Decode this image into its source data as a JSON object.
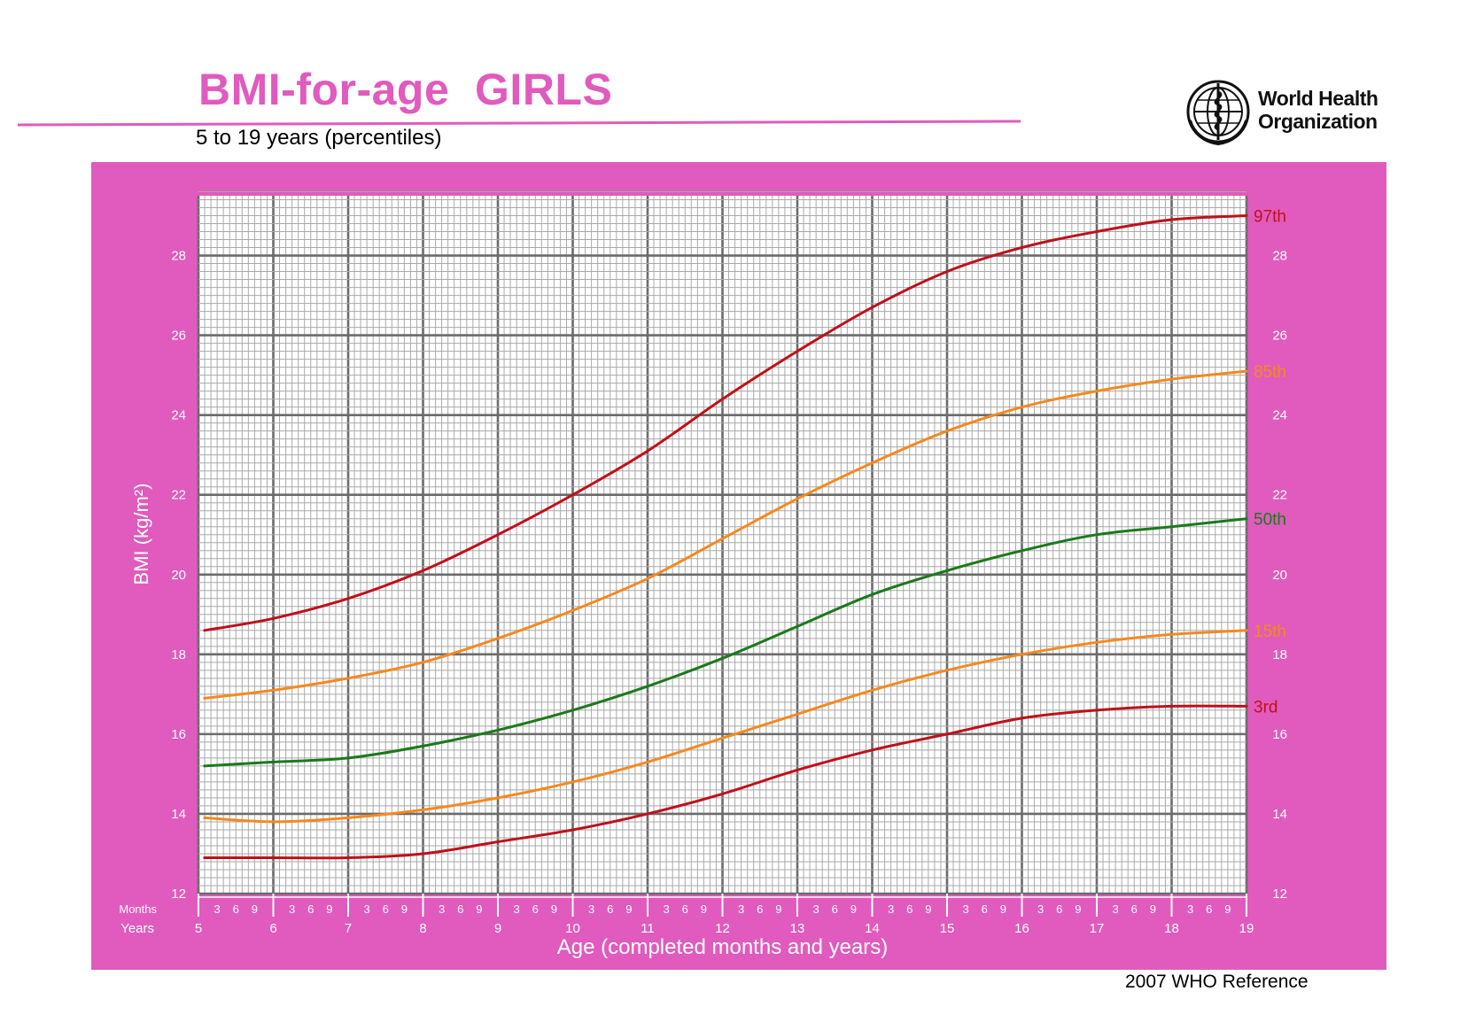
{
  "header": {
    "title": "BMI-for-age  GIRLS",
    "subtitle": "5 to 19 years (percentiles)",
    "org_line1": "World Health",
    "org_line2": "Organization",
    "logo_icon": "who-emblem-icon",
    "footer": "2007 WHO Reference"
  },
  "colors": {
    "frame": "#e05bbd",
    "title": "#e05bbd",
    "grid_major": "#6b6b6b",
    "grid_minor": "#a9a9a9",
    "p3_p97": "#c0101a",
    "p15_p85": "#f5891f",
    "p50": "#1a7a1a"
  },
  "chart_data": {
    "type": "line",
    "xlabel": "Age (completed months and years)",
    "ylabel": "BMI (kg/m²)",
    "xlim": [
      5,
      19
    ],
    "ylim": [
      12,
      29.5
    ],
    "y_ticks": [
      12,
      14,
      16,
      18,
      20,
      22,
      24,
      26,
      28
    ],
    "x_year_ticks": [
      5,
      6,
      7,
      8,
      9,
      10,
      11,
      12,
      13,
      14,
      15,
      16,
      17,
      18,
      19
    ],
    "x_month_ticks": [
      "3",
      "6",
      "9"
    ],
    "months_label": "Months",
    "years_label": "Years",
    "grid": true,
    "x": [
      5,
      6,
      7,
      8,
      9,
      10,
      11,
      12,
      13,
      14,
      15,
      16,
      17,
      18,
      19
    ],
    "series": [
      {
        "name": "97th",
        "color_key": "p3_p97",
        "values": [
          18.6,
          18.9,
          19.4,
          20.1,
          21.0,
          22.0,
          23.1,
          24.4,
          25.6,
          26.7,
          27.6,
          28.2,
          28.6,
          28.9,
          29.0
        ]
      },
      {
        "name": "85th",
        "color_key": "p15_p85",
        "values": [
          16.9,
          17.1,
          17.4,
          17.8,
          18.4,
          19.1,
          19.9,
          20.9,
          21.9,
          22.8,
          23.6,
          24.2,
          24.6,
          24.9,
          25.1
        ]
      },
      {
        "name": "50th",
        "color_key": "p50",
        "values": [
          15.2,
          15.3,
          15.4,
          15.7,
          16.1,
          16.6,
          17.2,
          17.9,
          18.7,
          19.5,
          20.1,
          20.6,
          21.0,
          21.2,
          21.4
        ]
      },
      {
        "name": "15th",
        "color_key": "p15_p85",
        "values": [
          13.9,
          13.8,
          13.9,
          14.1,
          14.4,
          14.8,
          15.3,
          15.9,
          16.5,
          17.1,
          17.6,
          18.0,
          18.3,
          18.5,
          18.6
        ]
      },
      {
        "name": "3rd",
        "color_key": "p3_p97",
        "values": [
          12.9,
          12.9,
          12.9,
          13.0,
          13.3,
          13.6,
          14.0,
          14.5,
          15.1,
          15.6,
          16.0,
          16.4,
          16.6,
          16.7,
          16.7
        ]
      }
    ]
  }
}
